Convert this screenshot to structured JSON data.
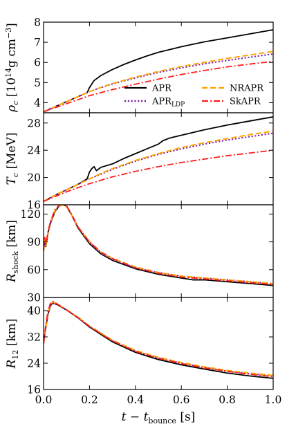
{
  "chart_data": {
    "type": "line",
    "shared_x": {
      "label_base": "t − t",
      "label_sub": "bounce",
      "label_unit": "[s]",
      "ticks": [
        0.0,
        0.2,
        0.4,
        0.6,
        0.8,
        1.0
      ],
      "tick_labels": [
        "0.0",
        "0.2",
        "0.4",
        "0.6",
        "0.8",
        "1.0"
      ],
      "xlim": [
        0,
        1
      ]
    },
    "legend": {
      "placement": "inside first panel, lower right",
      "entries": [
        {
          "series": "APR",
          "label": "APR",
          "label_sub": ""
        },
        {
          "series": "APR_LDP",
          "label": "APR",
          "label_sub": "LDP"
        },
        {
          "series": "NRAPR",
          "label": "NRAPR",
          "label_sub": ""
        },
        {
          "series": "SkAPR",
          "label": "SkAPR",
          "label_sub": ""
        }
      ]
    },
    "series_styles": [
      {
        "name": "APR",
        "color": "#000000",
        "dash": "solid"
      },
      {
        "name": "APR_LDP",
        "color": "#7b1fa2",
        "dash": "dotted"
      },
      {
        "name": "NRAPR",
        "color": "#ffa500",
        "dash": "dashed"
      },
      {
        "name": "SkAPR",
        "color": "#ff1a1a",
        "dash": "dashdot"
      }
    ],
    "panels": [
      {
        "id": "rho_c",
        "ylabel": {
          "sym": "ρ",
          "sub": "c",
          "unit_pre": "[10",
          "sup": "14",
          "unit_post": "g cm",
          "sup2": "−3",
          "close": "]"
        },
        "ylim": [
          3.5,
          8
        ],
        "yticks": [
          4,
          5,
          6,
          7,
          8
        ],
        "ytick_labels": [
          "4",
          "5",
          "6",
          "7",
          "8"
        ],
        "series": [
          {
            "name": "APR",
            "x": [
              0,
              0.05,
              0.1,
              0.15,
              0.19,
              0.2,
              0.22,
              0.25,
              0.3,
              0.35,
              0.4,
              0.45,
              0.5,
              0.6,
              0.7,
              0.8,
              0.9,
              1.0
            ],
            "y": [
              3.55,
              3.8,
              4.05,
              4.3,
              4.5,
              4.75,
              5.1,
              5.35,
              5.65,
              5.9,
              6.12,
              6.32,
              6.5,
              6.78,
              7.02,
              7.22,
              7.42,
              7.62
            ]
          },
          {
            "name": "APR_LDP",
            "x": [
              0,
              0.05,
              0.1,
              0.15,
              0.2,
              0.25,
              0.3,
              0.4,
              0.5,
              0.6,
              0.7,
              0.8,
              0.9,
              1.0
            ],
            "y": [
              3.55,
              3.8,
              4.05,
              4.3,
              4.55,
              4.75,
              4.93,
              5.23,
              5.5,
              5.73,
              5.93,
              6.1,
              6.26,
              6.42
            ]
          },
          {
            "name": "NRAPR",
            "x": [
              0,
              0.05,
              0.1,
              0.15,
              0.2,
              0.25,
              0.3,
              0.4,
              0.5,
              0.6,
              0.7,
              0.8,
              0.9,
              1.0
            ],
            "y": [
              3.55,
              3.8,
              4.05,
              4.3,
              4.55,
              4.76,
              4.95,
              5.27,
              5.55,
              5.8,
              6.0,
              6.2,
              6.37,
              6.55
            ]
          },
          {
            "name": "SkAPR",
            "x": [
              0,
              0.05,
              0.1,
              0.15,
              0.2,
              0.25,
              0.3,
              0.4,
              0.5,
              0.6,
              0.7,
              0.8,
              0.9,
              1.0
            ],
            "y": [
              3.55,
              3.75,
              3.95,
              4.15,
              4.35,
              4.5,
              4.65,
              4.92,
              5.17,
              5.4,
              5.6,
              5.78,
              5.92,
              6.05
            ]
          }
        ]
      },
      {
        "id": "T_c",
        "ylabel": {
          "sym": "T",
          "sub": "c",
          "unit": "[MeV]"
        },
        "ylim": [
          16,
          29.5
        ],
        "yticks": [
          16,
          20,
          24,
          28
        ],
        "ytick_labels": [
          "16",
          "20",
          "24",
          "28"
        ],
        "series": [
          {
            "name": "APR",
            "x": [
              0,
              0.05,
              0.1,
              0.15,
              0.19,
              0.2,
              0.21,
              0.22,
              0.23,
              0.25,
              0.3,
              0.35,
              0.4,
              0.45,
              0.5,
              0.52,
              0.55,
              0.6,
              0.7,
              0.8,
              0.9,
              1.0
            ],
            "y": [
              16.5,
              17.4,
              18.2,
              19.0,
              19.8,
              20.8,
              21.3,
              21.6,
              21.0,
              21.5,
              22.0,
              22.8,
              23.5,
              24.2,
              24.9,
              25.4,
              25.8,
              26.2,
              27.0,
              27.7,
              28.3,
              28.9
            ]
          },
          {
            "name": "APR_LDP",
            "x": [
              0,
              0.05,
              0.1,
              0.15,
              0.2,
              0.25,
              0.3,
              0.4,
              0.5,
              0.6,
              0.7,
              0.8,
              0.9,
              1.0
            ],
            "y": [
              16.5,
              17.4,
              18.2,
              19.0,
              19.8,
              20.5,
              21.2,
              22.4,
              23.4,
              24.2,
              24.9,
              25.5,
              26.0,
              26.5
            ]
          },
          {
            "name": "NRAPR",
            "x": [
              0,
              0.05,
              0.1,
              0.15,
              0.2,
              0.25,
              0.3,
              0.4,
              0.5,
              0.6,
              0.7,
              0.8,
              0.9,
              1.0
            ],
            "y": [
              16.5,
              17.4,
              18.2,
              19.0,
              19.8,
              20.6,
              21.3,
              22.5,
              23.5,
              24.4,
              25.1,
              25.7,
              26.3,
              26.8
            ]
          },
          {
            "name": "SkAPR",
            "x": [
              0,
              0.05,
              0.1,
              0.15,
              0.2,
              0.25,
              0.3,
              0.4,
              0.5,
              0.6,
              0.7,
              0.8,
              0.9,
              1.0
            ],
            "y": [
              16.5,
              17.2,
              17.9,
              18.5,
              19.1,
              19.6,
              20.1,
              20.9,
              21.6,
              22.2,
              22.7,
              23.2,
              23.6,
              24.0
            ]
          }
        ]
      },
      {
        "id": "R_shock",
        "ylabel": {
          "sym": "R",
          "sub": "shock",
          "unit": "[km]"
        },
        "ylim": [
          30,
          130
        ],
        "yticks": [
          30,
          60,
          90,
          120
        ],
        "ytick_labels": [
          "30",
          "60",
          "90",
          "120"
        ],
        "series": [
          {
            "name": "APR",
            "x": [
              0,
              0.005,
              0.01,
              0.02,
              0.03,
              0.05,
              0.07,
              0.09,
              0.1,
              0.12,
              0.15,
              0.2,
              0.25,
              0.3,
              0.4,
              0.5,
              0.6,
              0.65,
              0.7,
              0.75,
              0.8,
              0.9,
              1.0
            ],
            "y": [
              80,
              92,
              85,
              100,
              110,
              123,
              129,
              130,
              128,
              120,
              105,
              88,
              77,
              70,
              61,
              55,
              51,
              49,
              49,
              48,
              47,
              45,
              43
            ]
          },
          {
            "name": "APR_LDP",
            "x": [
              0,
              0.005,
              0.01,
              0.02,
              0.03,
              0.05,
              0.07,
              0.09,
              0.1,
              0.12,
              0.15,
              0.2,
              0.25,
              0.3,
              0.4,
              0.5,
              0.6,
              0.7,
              0.8,
              0.9,
              1.0
            ],
            "y": [
              80,
              92,
              86,
              101,
              111,
              124,
              129,
              130,
              128,
              120,
              106,
              89,
              78,
              71,
              62,
              57,
              53,
              51,
              49,
              47,
              45
            ]
          },
          {
            "name": "NRAPR",
            "x": [
              0,
              0.005,
              0.01,
              0.02,
              0.03,
              0.05,
              0.07,
              0.09,
              0.1,
              0.12,
              0.15,
              0.2,
              0.25,
              0.3,
              0.4,
              0.5,
              0.6,
              0.7,
              0.8,
              0.9,
              1.0
            ],
            "y": [
              80,
              92,
              86,
              101,
              111,
              124,
              129,
              130,
              128,
              120,
              106,
              90,
              79,
              72,
              63,
              57,
              53,
              51,
              49,
              47,
              45
            ]
          },
          {
            "name": "SkAPR",
            "x": [
              0,
              0.005,
              0.01,
              0.02,
              0.03,
              0.05,
              0.07,
              0.09,
              0.1,
              0.12,
              0.15,
              0.2,
              0.25,
              0.3,
              0.4,
              0.5,
              0.6,
              0.7,
              0.8,
              0.9,
              1.0
            ],
            "y": [
              80,
              95,
              88,
              102,
              112,
              125,
              130,
              131,
              129,
              121,
              106,
              90,
              79,
              72,
              62,
              56,
              52,
              50,
              48,
              46,
              44
            ]
          }
        ]
      },
      {
        "id": "R_12",
        "ylabel": {
          "sym": "R",
          "sub": "12",
          "unit": "[km]"
        },
        "ylim": [
          16,
          44
        ],
        "yticks": [
          16,
          24,
          32,
          40
        ],
        "ytick_labels": [
          "16",
          "24",
          "32",
          "40"
        ],
        "series": [
          {
            "name": "APR",
            "x": [
              0,
              0.01,
              0.02,
              0.03,
              0.04,
              0.06,
              0.1,
              0.15,
              0.2,
              0.3,
              0.4,
              0.5,
              0.6,
              0.7,
              0.8,
              0.9,
              1.0
            ],
            "y": [
              30,
              35,
              39,
              41.5,
              42.3,
              41.8,
              40.2,
              37.8,
              35.0,
              30.5,
              27.3,
              25.1,
              23.5,
              22.2,
              21.0,
              20.1,
              19.4
            ]
          },
          {
            "name": "APR_LDP",
            "x": [
              0,
              0.01,
              0.02,
              0.03,
              0.04,
              0.06,
              0.1,
              0.15,
              0.2,
              0.3,
              0.4,
              0.5,
              0.6,
              0.7,
              0.8,
              0.9,
              1.0
            ],
            "y": [
              30,
              35,
              39,
              41.5,
              42.3,
              41.8,
              40.2,
              37.9,
              35.2,
              30.8,
              27.7,
              25.6,
              24.0,
              22.7,
              21.6,
              20.8,
              20.1
            ]
          },
          {
            "name": "NRAPR",
            "x": [
              0,
              0.01,
              0.02,
              0.03,
              0.04,
              0.06,
              0.1,
              0.15,
              0.2,
              0.3,
              0.4,
              0.5,
              0.6,
              0.7,
              0.8,
              0.9,
              1.0
            ],
            "y": [
              30,
              35,
              39.5,
              42,
              42.6,
              42.0,
              40.3,
              38.0,
              35.3,
              31.0,
              27.9,
              25.8,
              24.2,
              22.9,
              21.8,
              21.0,
              20.3
            ]
          },
          {
            "name": "SkAPR",
            "x": [
              0,
              0.01,
              0.02,
              0.03,
              0.04,
              0.06,
              0.1,
              0.15,
              0.2,
              0.3,
              0.4,
              0.5,
              0.6,
              0.7,
              0.8,
              0.9,
              1.0
            ],
            "y": [
              30,
              36,
              40,
              42.3,
              42.8,
              42.0,
              40.2,
              37.9,
              35.2,
              30.8,
              27.6,
              25.5,
              23.9,
              22.6,
              21.5,
              20.6,
              19.9
            ]
          }
        ]
      }
    ]
  }
}
